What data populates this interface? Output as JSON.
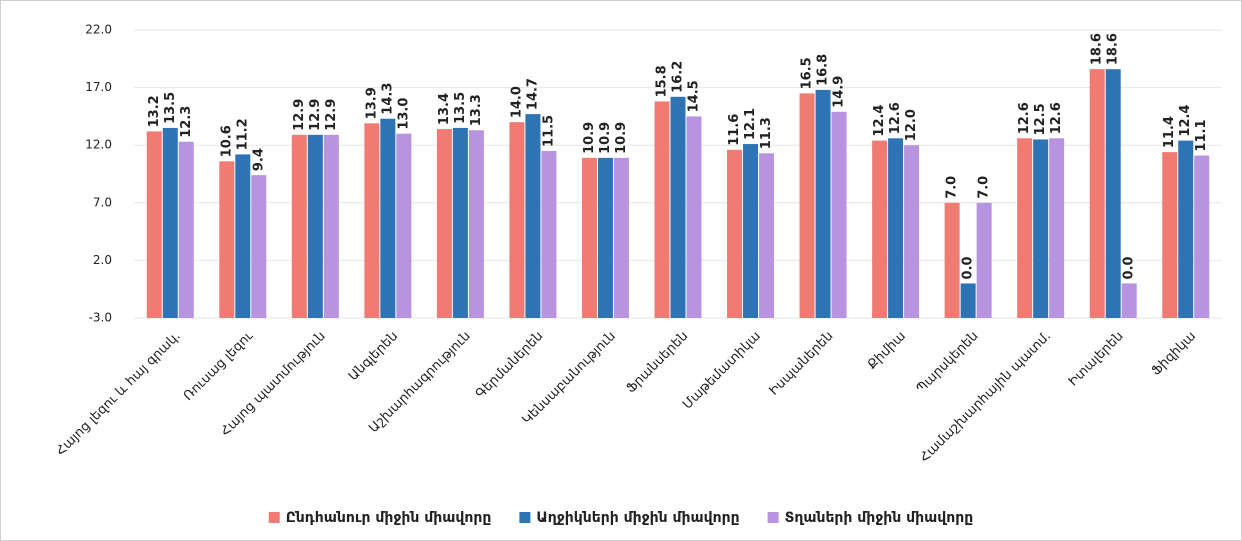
{
  "chart_data": {
    "type": "bar",
    "categories": [
      "Հայոց լեզու և հայ գրակ.",
      "Ռուսաց լեզու",
      "Հայոց պատմություն",
      "Անգլերեն",
      "Աշխարհագրություն",
      "Գերմաներեն",
      "Կենսաբանություն",
      "Ֆրանսերեն",
      "Մաթեմատիկա",
      "Իսպաներեն",
      "Քիմիա",
      "Պարսկերեն",
      "Համաշխարհային պատմ.",
      "Իտալերեն",
      "Ֆիզիկա"
    ],
    "series": [
      {
        "name": "Ընդհանուր միջին միավորը",
        "color": "#f07b72",
        "values": [
          13.2,
          10.6,
          12.9,
          13.9,
          13.4,
          14.0,
          10.9,
          15.8,
          11.6,
          16.5,
          12.4,
          7.0,
          12.6,
          18.6,
          11.4
        ],
        "value_labels": [
          "13.2",
          "10.6",
          "12.9",
          "13.9",
          "13.4",
          "14.0",
          "10.9",
          "15.8",
          "11.6",
          "16.5",
          "12.4",
          "7.0",
          "12.6",
          "18.6",
          "11.4"
        ]
      },
      {
        "name": "Աղջիկների միջին միավորը",
        "color": "#2e74b5",
        "values": [
          13.5,
          11.2,
          12.9,
          14.3,
          13.5,
          14.7,
          10.9,
          16.2,
          12.1,
          16.8,
          12.6,
          0.0,
          12.5,
          18.6,
          12.4
        ],
        "value_labels": [
          "13.5",
          "11.2",
          "12.9",
          "14.3",
          "13.5",
          "14.7",
          "10.9",
          "16.2",
          "12.1",
          "16.8",
          "12.6",
          "0.0",
          "12.5",
          "18.6",
          "12.4"
        ]
      },
      {
        "name": "Տղաների միջին միավորը",
        "color": "#b894e0",
        "values": [
          12.3,
          9.4,
          12.9,
          13.0,
          13.3,
          11.5,
          10.9,
          14.5,
          11.3,
          14.9,
          12.0,
          7.0,
          12.6,
          0.0,
          11.1
        ],
        "value_labels": [
          "12.3",
          "9.4",
          "12.9",
          "13.0",
          "13.3",
          "11.5",
          "10.9",
          "14.5",
          "11.3",
          "14.9",
          "12.0",
          "7.0",
          "12.6",
          "0.0",
          "11.1"
        ]
      }
    ],
    "ylim": [
      -3,
      22
    ],
    "yticks": [
      {
        "value": -3,
        "label": "-3.0"
      },
      {
        "value": 2,
        "label": "2.0"
      },
      {
        "value": 7,
        "label": "7.0"
      },
      {
        "value": 12,
        "label": "12.0"
      },
      {
        "value": 17,
        "label": "17.0"
      },
      {
        "value": 22,
        "label": "22.0"
      }
    ],
    "grid": true,
    "legend": "bottom"
  }
}
